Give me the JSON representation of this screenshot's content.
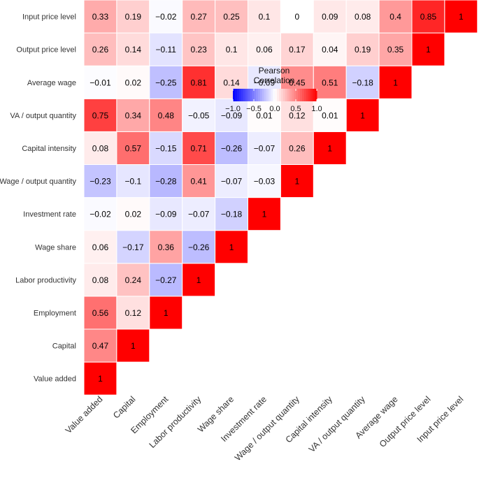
{
  "chart_data": {
    "type": "heatmap",
    "subtype": "lower-triangular correlation matrix",
    "variables": [
      "Value added",
      "Capital",
      "Employment",
      "Labor productivity",
      "Wage share",
      "Investment rate",
      "Wage / output quantity",
      "Capital intensity",
      "VA / output quantity",
      "Average wage",
      "Output price level",
      "Input price level"
    ],
    "row_labels": [
      "Input price level",
      "Output price level",
      "Average wage",
      "VA / output quantity",
      "Capital intensity",
      "Wage / output quantity",
      "Investment rate",
      "Wage share",
      "Labor productivity",
      "Employment",
      "Capital",
      "Value added"
    ],
    "correlations": [
      [
        1
      ],
      [
        0.47,
        1
      ],
      [
        0.56,
        0.12,
        1
      ],
      [
        0.08,
        0.24,
        -0.27,
        1
      ],
      [
        0.06,
        -0.17,
        0.36,
        -0.26,
        1
      ],
      [
        -0.02,
        0.02,
        -0.09,
        -0.07,
        -0.18,
        1
      ],
      [
        -0.23,
        -0.1,
        -0.28,
        0.41,
        -0.07,
        -0.03,
        1
      ],
      [
        0.08,
        0.57,
        -0.15,
        0.71,
        -0.26,
        -0.07,
        0.26,
        1
      ],
      [
        0.75,
        0.34,
        0.48,
        -0.05,
        -0.09,
        0.01,
        0.12,
        0.01,
        1
      ],
      [
        -0.01,
        0.02,
        -0.25,
        0.81,
        0.14,
        -0.09,
        0.45,
        0.51,
        -0.18,
        1
      ],
      [
        0.26,
        0.14,
        -0.11,
        0.23,
        0.1,
        0.06,
        0.17,
        0.04,
        0.19,
        0.35,
        1
      ],
      [
        0.33,
        0.19,
        -0.02,
        0.27,
        0.25,
        0.1,
        0,
        0.09,
        0.08,
        0.4,
        0.85,
        1
      ]
    ],
    "value_labels": [
      [
        "1"
      ],
      [
        "0.47",
        "1"
      ],
      [
        "0.56",
        "0.12",
        "1"
      ],
      [
        "0.08",
        "0.24",
        "−0.27",
        "1"
      ],
      [
        "0.06",
        "−0.17",
        "0.36",
        "−0.26",
        "1"
      ],
      [
        "−0.02",
        "0.02",
        "−0.09",
        "−0.07",
        "−0.18",
        "1"
      ],
      [
        "−0.23",
        "−0.1",
        "−0.28",
        "0.41",
        "−0.07",
        "−0.03",
        "1"
      ],
      [
        "0.08",
        "0.57",
        "−0.15",
        "0.71",
        "−0.26",
        "−0.07",
        "0.26",
        "1"
      ],
      [
        "0.75",
        "0.34",
        "0.48",
        "−0.05",
        "−0.09",
        "0.01",
        "0.12",
        "0.01",
        "1"
      ],
      [
        "−0.01",
        "0.02",
        "−0.25",
        "0.81",
        "0.14",
        "−0.09",
        "0.45",
        "0.51",
        "−0.18",
        "1"
      ],
      [
        "0.26",
        "0.14",
        "−0.11",
        "0.23",
        "0.1",
        "0.06",
        "0.17",
        "0.04",
        "0.19",
        "0.35",
        "1"
      ],
      [
        "0.33",
        "0.19",
        "−0.02",
        "0.27",
        "0.25",
        "0.1",
        "0",
        "0.09",
        "0.08",
        "0.4",
        "0.85",
        "1"
      ]
    ],
    "legend": {
      "title_line1": "Pearson",
      "title_line2": "Correlation",
      "ticks": [
        "−1.0",
        "−0.5",
        "0.0",
        "0.5",
        "1.0"
      ],
      "tick_values": [
        -1,
        -0.5,
        0,
        0.5,
        1
      ],
      "range": [
        -1,
        1
      ],
      "placement": "top-center"
    },
    "colors": {
      "low": "#0000ff",
      "mid": "#ffffff",
      "high": "#ff0000",
      "text": "#000000",
      "label": "#333333"
    }
  }
}
